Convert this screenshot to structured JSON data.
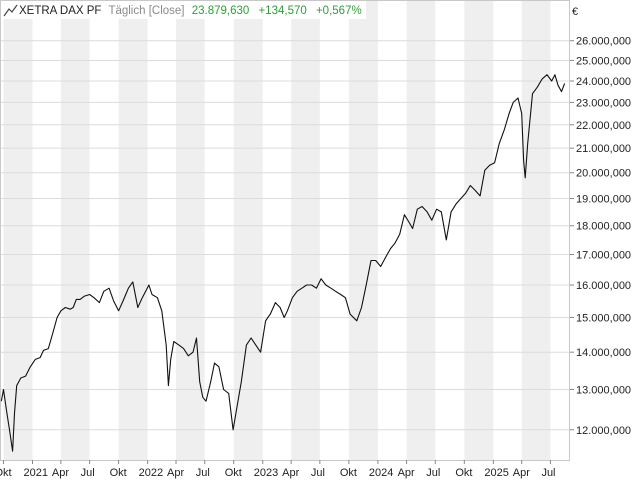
{
  "header": {
    "icon": "line-chart-icon",
    "instrument": "XETRA DAX PF",
    "mode": "Täglich [Close]",
    "last": "23.879,630",
    "change": "+134,570",
    "change_pct": "+0,567%",
    "currency": "€"
  },
  "colors": {
    "up": "#2e9e3a",
    "muted": "#8a8a8a",
    "line": "#111111",
    "band": "#efefef",
    "grid": "#dcdcdc"
  },
  "chart_data": {
    "type": "line",
    "title": "XETRA DAX PF",
    "scale": "log",
    "ylim": [
      11300,
      27200
    ],
    "grid": true,
    "y_ticks": [
      12000,
      13000,
      14000,
      15000,
      16000,
      17000,
      18000,
      19000,
      20000,
      21000,
      22000,
      23000,
      24000,
      25000,
      26000
    ],
    "y_tick_labels": [
      "12.000,000",
      "13.000,000",
      "14.000,000",
      "15.000,000",
      "16.000,000",
      "17.000,000",
      "18.000,000",
      "19.000,000",
      "20.000,000",
      "21.000,000",
      "22.000,000",
      "23.000,000",
      "24.000,000",
      "25.000,000",
      "26.000,000"
    ],
    "x_range": [
      "2020-09-20",
      "2025-09-01"
    ],
    "x_ticks": [
      {
        "date": "2020-10-01",
        "label": "Okt"
      },
      {
        "date": "2021-01-01",
        "label": "2021"
      },
      {
        "date": "2021-04-01",
        "label": "Apr"
      },
      {
        "date": "2021-07-01",
        "label": "Jul"
      },
      {
        "date": "2021-10-01",
        "label": "Okt"
      },
      {
        "date": "2022-01-01",
        "label": "2022"
      },
      {
        "date": "2022-04-01",
        "label": "Apr"
      },
      {
        "date": "2022-07-01",
        "label": "Jul"
      },
      {
        "date": "2022-10-01",
        "label": "Okt"
      },
      {
        "date": "2023-01-01",
        "label": "2023"
      },
      {
        "date": "2023-04-01",
        "label": "Apr"
      },
      {
        "date": "2023-07-01",
        "label": "Jul"
      },
      {
        "date": "2023-10-01",
        "label": "Okt"
      },
      {
        "date": "2024-01-01",
        "label": "2024"
      },
      {
        "date": "2024-04-01",
        "label": "Apr"
      },
      {
        "date": "2024-07-01",
        "label": "Jul"
      },
      {
        "date": "2024-10-01",
        "label": "Okt"
      },
      {
        "date": "2025-01-01",
        "label": "2025"
      },
      {
        "date": "2025-04-01",
        "label": "Apr"
      },
      {
        "date": "2025-07-01",
        "label": "Jul"
      }
    ],
    "series": [
      {
        "x": [
          "2020-09-24",
          "2020-10-01",
          "2020-10-10",
          "2020-10-20",
          "2020-10-30",
          "2020-11-05",
          "2020-11-12",
          "2020-11-25",
          "2020-12-10",
          "2020-12-25",
          "2021-01-10",
          "2021-01-25",
          "2021-02-05",
          "2021-02-20",
          "2021-03-05",
          "2021-03-20",
          "2021-04-01",
          "2021-04-15",
          "2021-05-01",
          "2021-05-10",
          "2021-05-20",
          "2021-06-01",
          "2021-06-15",
          "2021-07-01",
          "2021-07-15",
          "2021-08-01",
          "2021-08-15",
          "2021-09-01",
          "2021-09-15",
          "2021-10-01",
          "2021-10-15",
          "2021-11-01",
          "2021-11-15",
          "2021-12-01",
          "2021-12-15",
          "2022-01-05",
          "2022-01-15",
          "2022-02-01",
          "2022-02-15",
          "2022-03-01",
          "2022-03-08",
          "2022-03-15",
          "2022-03-25",
          "2022-04-10",
          "2022-04-25",
          "2022-05-10",
          "2022-05-25",
          "2022-06-05",
          "2022-06-15",
          "2022-06-25",
          "2022-07-05",
          "2022-07-20",
          "2022-08-01",
          "2022-08-15",
          "2022-08-30",
          "2022-09-15",
          "2022-09-29",
          "2022-10-10",
          "2022-10-25",
          "2022-11-10",
          "2022-11-25",
          "2022-12-10",
          "2022-12-25",
          "2023-01-10",
          "2023-01-25",
          "2023-02-10",
          "2023-02-25",
          "2023-03-10",
          "2023-03-20",
          "2023-04-05",
          "2023-04-20",
          "2023-05-05",
          "2023-05-20",
          "2023-06-05",
          "2023-06-20",
          "2023-07-05",
          "2023-07-20",
          "2023-08-05",
          "2023-08-20",
          "2023-09-05",
          "2023-09-20",
          "2023-10-05",
          "2023-10-26",
          "2023-11-10",
          "2023-11-25",
          "2023-12-10",
          "2023-12-25",
          "2024-01-10",
          "2024-01-25",
          "2024-02-10",
          "2024-02-25",
          "2024-03-10",
          "2024-03-25",
          "2024-04-10",
          "2024-04-20",
          "2024-05-05",
          "2024-05-20",
          "2024-06-05",
          "2024-06-20",
          "2024-07-05",
          "2024-07-20",
          "2024-08-05",
          "2024-08-20",
          "2024-09-05",
          "2024-09-20",
          "2024-10-05",
          "2024-10-20",
          "2024-11-05",
          "2024-11-20",
          "2024-12-05",
          "2024-12-20",
          "2025-01-05",
          "2025-01-20",
          "2025-02-05",
          "2025-02-20",
          "2025-03-05",
          "2025-03-20",
          "2025-04-01",
          "2025-04-07",
          "2025-04-12",
          "2025-04-20",
          "2025-05-05",
          "2025-05-20",
          "2025-06-05",
          "2025-06-20",
          "2025-07-05",
          "2025-07-15",
          "2025-07-25",
          "2025-08-05",
          "2025-08-15"
        ],
        "y": [
          12700,
          13000,
          12500,
          12000,
          11500,
          12400,
          13100,
          13300,
          13350,
          13600,
          13800,
          13850,
          14050,
          14100,
          14500,
          15000,
          15200,
          15300,
          15250,
          15300,
          15550,
          15550,
          15650,
          15700,
          15600,
          15450,
          15800,
          15900,
          15500,
          15200,
          15500,
          15900,
          16100,
          15300,
          15600,
          16000,
          15700,
          15600,
          15200,
          14200,
          13100,
          13800,
          14300,
          14200,
          14100,
          13900,
          14000,
          14400,
          13200,
          12800,
          12700,
          13200,
          13700,
          13600,
          13000,
          12900,
          12000,
          12500,
          13200,
          14200,
          14400,
          14200,
          14000,
          14900,
          15100,
          15450,
          15300,
          15000,
          15200,
          15600,
          15800,
          15900,
          16000,
          16000,
          15900,
          16200,
          16000,
          15900,
          15800,
          15700,
          15600,
          15100,
          14900,
          15300,
          16000,
          16800,
          16800,
          16600,
          16900,
          17200,
          17400,
          17700,
          18400,
          18100,
          17900,
          18600,
          18700,
          18500,
          18200,
          18600,
          18500,
          17500,
          18500,
          18800,
          19000,
          19200,
          19500,
          19300,
          19100,
          20100,
          20300,
          20400,
          21200,
          21800,
          22500,
          23000,
          23200,
          22500,
          20500,
          19800,
          21200,
          23400,
          23700,
          24100,
          24300,
          24000,
          24300,
          23800,
          23500,
          23880
        ]
      }
    ]
  }
}
